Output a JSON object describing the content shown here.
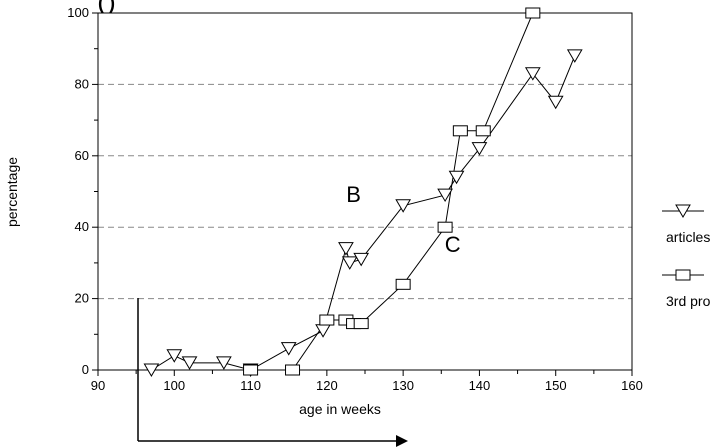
{
  "chart_data": {
    "type": "line",
    "title": "",
    "xlabel": "age in weeks",
    "ylabel": "percentage",
    "xlim": [
      90,
      160
    ],
    "ylim": [
      0,
      100
    ],
    "x_ticks": [
      90,
      100,
      110,
      120,
      130,
      140,
      150,
      160
    ],
    "y_ticks": [
      0,
      20,
      40,
      60,
      80,
      100
    ],
    "grid": "horizontal-dashed",
    "legend_position": "right",
    "series": [
      {
        "name": "articles",
        "marker": "triangle-down",
        "x": [
          97,
          100,
          102,
          106.5,
          110,
          115,
          119.5,
          122.5,
          123,
          124.5,
          130,
          135.5,
          137,
          140,
          147,
          150,
          152.5
        ],
        "y": [
          0,
          4,
          2,
          2,
          0,
          6,
          11,
          34,
          30,
          31,
          46,
          49,
          54,
          62,
          83,
          75,
          88
        ]
      },
      {
        "name": "3rd pro",
        "marker": "square",
        "x": [
          110,
          115.5,
          120,
          122.5,
          123.5,
          124.5,
          130,
          135.5,
          137.5,
          140.5,
          147
        ],
        "y": [
          0,
          0,
          14,
          14,
          13,
          13,
          24,
          40,
          67,
          67,
          100
        ]
      }
    ],
    "annotations": [
      {
        "text": "B",
        "x": 123.5,
        "y": 47
      },
      {
        "text": "C",
        "x": 136.5,
        "y": 33
      }
    ],
    "title_fragment": "(                                              )"
  }
}
